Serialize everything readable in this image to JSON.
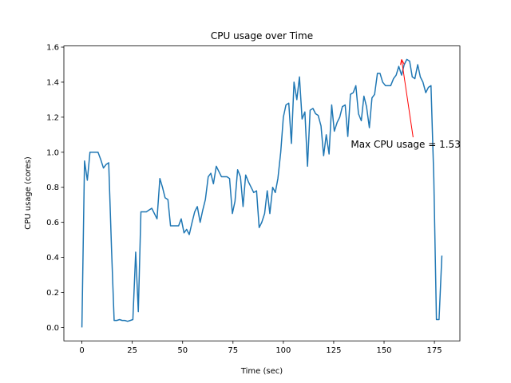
{
  "chart_data": {
    "type": "line",
    "title": "CPU usage over Time",
    "xlabel": "Time (sec)",
    "ylabel": "CPU usage (cores)",
    "x": [
      0,
      1.3,
      2.7,
      4,
      5.3,
      6.7,
      8,
      9.3,
      10.7,
      12,
      13.3,
      14.7,
      16,
      17.3,
      18.7,
      20,
      21.3,
      22.7,
      24,
      25.3,
      26.7,
      28,
      29.3,
      30.7,
      32,
      33.3,
      34.7,
      36,
      37.3,
      38.7,
      40,
      41.3,
      42.7,
      44,
      45.3,
      46.7,
      48,
      49.3,
      50.7,
      52,
      53.3,
      54.7,
      56,
      57.3,
      58.7,
      60,
      61.3,
      62.7,
      64,
      65.3,
      66.7,
      68,
      69.3,
      70.7,
      72,
      73.3,
      74.7,
      76,
      77.3,
      78.7,
      80,
      81.3,
      82.7,
      84,
      85.3,
      86.7,
      88,
      89.3,
      90.7,
      92,
      93.3,
      94.7,
      96,
      97.3,
      98.7,
      100,
      101.3,
      102.7,
      104,
      105.3,
      106.7,
      108,
      109.3,
      110.7,
      112,
      113.3,
      114.7,
      116,
      117.3,
      118.7,
      120,
      121.3,
      122.7,
      124,
      125.3,
      126.7,
      128,
      129.3,
      130.7,
      132,
      133.3,
      134.7,
      136,
      137.3,
      138.7,
      140,
      141.3,
      142.7,
      144,
      145.3,
      146.7,
      148,
      149.3,
      150.7,
      152,
      153.3,
      154.7,
      156,
      157.3,
      158.7,
      160,
      161.3,
      162.7,
      164,
      165.3,
      166.7,
      168,
      169.3,
      170.7,
      172,
      173.3,
      174.7,
      176,
      177.3,
      178.7
    ],
    "series": [
      {
        "name": "CPU usage",
        "color": "#1f77b4",
        "values": [
          0.0,
          0.95,
          0.84,
          1.0,
          1.0,
          1.0,
          1.0,
          0.96,
          0.91,
          0.93,
          0.94,
          0.45,
          0.04,
          0.04,
          0.045,
          0.04,
          0.04,
          0.035,
          0.04,
          0.045,
          0.43,
          0.09,
          0.66,
          0.66,
          0.66,
          0.67,
          0.68,
          0.65,
          0.62,
          0.85,
          0.8,
          0.74,
          0.73,
          0.58,
          0.58,
          0.58,
          0.58,
          0.62,
          0.54,
          0.56,
          0.53,
          0.6,
          0.66,
          0.69,
          0.6,
          0.67,
          0.73,
          0.86,
          0.88,
          0.82,
          0.92,
          0.89,
          0.86,
          0.86,
          0.86,
          0.85,
          0.65,
          0.72,
          0.9,
          0.86,
          0.69,
          0.87,
          0.83,
          0.8,
          0.77,
          0.78,
          0.57,
          0.6,
          0.65,
          0.78,
          0.65,
          0.8,
          0.77,
          0.85,
          1.0,
          1.2,
          1.27,
          1.28,
          1.05,
          1.4,
          1.3,
          1.43,
          1.19,
          1.23,
          0.92,
          1.24,
          1.25,
          1.22,
          1.21,
          1.15,
          0.98,
          1.1,
          0.99,
          1.27,
          1.12,
          1.17,
          1.2,
          1.26,
          1.27,
          1.09,
          1.33,
          1.34,
          1.38,
          1.22,
          1.18,
          1.32,
          1.26,
          1.14,
          1.31,
          1.33,
          1.45,
          1.45,
          1.4,
          1.38,
          1.38,
          1.38,
          1.42,
          1.44,
          1.49,
          1.44,
          1.5,
          1.53,
          1.52,
          1.43,
          1.42,
          1.5,
          1.43,
          1.4,
          1.34,
          1.37,
          1.38,
          0.85,
          0.045,
          0.045,
          0.41
        ]
      }
    ],
    "xlim": [
      -8.95,
      187.65
    ],
    "ylim": [
      -0.0765,
      1.6065
    ],
    "xticks": [
      0,
      25,
      50,
      75,
      100,
      125,
      150,
      175
    ],
    "yticks": [
      {
        "value": 0,
        "label": "0.0"
      },
      {
        "value": 0.2,
        "label": "0.2"
      },
      {
        "value": 0.4,
        "label": "0.4"
      },
      {
        "value": 0.6,
        "label": "0.6"
      },
      {
        "value": 0.8,
        "label": "0.8"
      },
      {
        "value": 1,
        "label": "1.0"
      },
      {
        "value": 1.2,
        "label": "1.2"
      },
      {
        "value": 1.4,
        "label": "1.4"
      },
      {
        "value": 1.6,
        "label": "1.6"
      }
    ],
    "annotation": {
      "text": "Max CPU usage = 1.53",
      "color": "red",
      "xy": [
        158.7,
        1.53
      ],
      "xytext": [
        133.5,
        1.04
      ]
    }
  }
}
